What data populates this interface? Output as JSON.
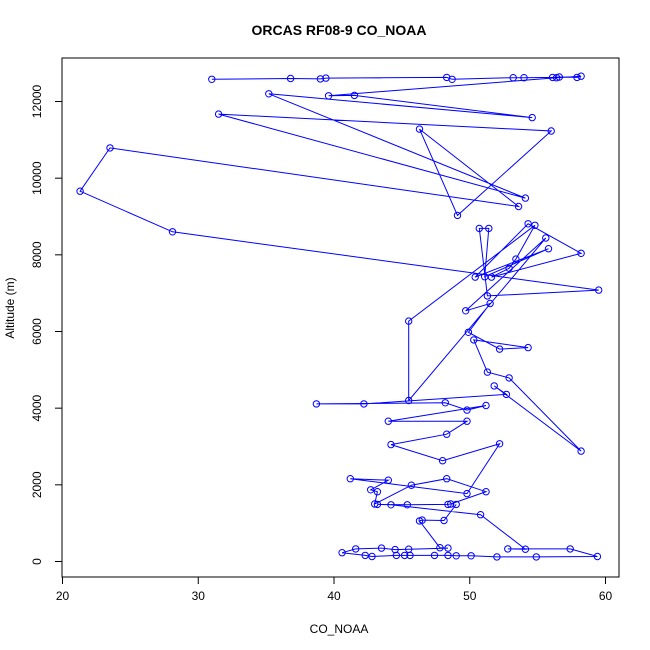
{
  "chart_data": {
    "type": "line",
    "title": "ORCAS RF08-9 CO_NOAA",
    "xlabel": "CO_NOAA",
    "ylabel": "Altitude (m)",
    "xlim": [
      20,
      60
    ],
    "ylim": [
      0,
      13000
    ],
    "x_ticks": [
      "20",
      "30",
      "40",
      "50",
      "60"
    ],
    "y_ticks": [
      "0",
      "2000",
      "4000",
      "6000",
      "8000",
      "10000",
      "12000"
    ],
    "series_color": "#0000ff",
    "marker": "open-circle",
    "grid": false,
    "series": [
      {
        "points": [
          [
            31.0,
            12580
          ],
          [
            36.8,
            12600
          ],
          [
            39.0,
            12590
          ],
          [
            39.4,
            12610
          ],
          [
            48.3,
            12630
          ],
          [
            48.7,
            12580
          ],
          [
            53.2,
            12620
          ],
          [
            54.0,
            12620
          ],
          [
            56.1,
            12630
          ],
          [
            56.6,
            12640
          ],
          [
            57.9,
            12630
          ],
          [
            58.2,
            12660
          ],
          [
            56.4,
            12620
          ],
          [
            39.6,
            12150
          ],
          [
            41.5,
            12160
          ],
          [
            54.6,
            11580
          ],
          [
            35.2,
            12200
          ],
          [
            54.1,
            9480
          ],
          [
            31.5,
            11670
          ],
          [
            56.0,
            11230
          ],
          [
            49.1,
            9030
          ],
          [
            46.3,
            11280
          ],
          [
            53.6,
            9260
          ],
          [
            23.5,
            10790
          ],
          [
            21.3,
            9660
          ],
          [
            28.1,
            8600
          ],
          [
            59.5,
            7080
          ],
          [
            51.3,
            6930
          ],
          [
            50.7,
            8690
          ],
          [
            51.4,
            8690
          ],
          [
            51.1,
            7430
          ],
          [
            55.8,
            8160
          ],
          [
            50.4,
            7420
          ],
          [
            54.3,
            8810
          ],
          [
            58.2,
            8040
          ],
          [
            51.6,
            7420
          ],
          [
            52.9,
            7650
          ],
          [
            53.4,
            7890
          ],
          [
            54.8,
            8770
          ],
          [
            45.5,
            6270
          ],
          [
            45.5,
            4200
          ],
          [
            55.6,
            8440
          ],
          [
            49.7,
            6540
          ],
          [
            51.5,
            6730
          ],
          [
            49.9,
            5980
          ],
          [
            52.2,
            5540
          ],
          [
            54.3,
            5580
          ],
          [
            50.3,
            5780
          ],
          [
            51.3,
            4940
          ],
          [
            52.9,
            4790
          ],
          [
            58.2,
            2880
          ],
          [
            51.8,
            4580
          ],
          [
            52.7,
            4360
          ],
          [
            42.2,
            4110
          ],
          [
            38.7,
            4110
          ],
          [
            48.2,
            4140
          ],
          [
            49.8,
            3950
          ],
          [
            51.2,
            4070
          ],
          [
            44.0,
            3660
          ],
          [
            49.8,
            3660
          ],
          [
            48.3,
            3320
          ],
          [
            44.2,
            3050
          ],
          [
            48.0,
            2630
          ],
          [
            52.2,
            3070
          ],
          [
            49.8,
            1770
          ],
          [
            41.2,
            2160
          ],
          [
            44.0,
            2120
          ],
          [
            42.7,
            1870
          ],
          [
            43.2,
            1820
          ],
          [
            43.0,
            1500
          ],
          [
            45.7,
            1990
          ],
          [
            48.3,
            2160
          ],
          [
            51.2,
            1820
          ],
          [
            48.6,
            1500
          ],
          [
            48.4,
            1490
          ],
          [
            45.4,
            1480
          ],
          [
            43.2,
            1490
          ],
          [
            44.2,
            1480
          ],
          [
            50.8,
            1220
          ],
          [
            54.1,
            320
          ],
          [
            52.8,
            330
          ],
          [
            57.4,
            330
          ],
          [
            59.4,
            130
          ],
          [
            54.9,
            120
          ],
          [
            52.0,
            120
          ],
          [
            50.1,
            150
          ],
          [
            49.0,
            150
          ],
          [
            48.4,
            160
          ],
          [
            47.4,
            160
          ],
          [
            45.6,
            160
          ],
          [
            45.2,
            160
          ],
          [
            44.6,
            160
          ],
          [
            42.8,
            130
          ],
          [
            42.3,
            160
          ],
          [
            40.6,
            230
          ],
          [
            41.6,
            330
          ],
          [
            43.5,
            350
          ],
          [
            44.5,
            310
          ],
          [
            45.5,
            320
          ],
          [
            48.4,
            350
          ],
          [
            47.8,
            360
          ],
          [
            46.3,
            1060
          ],
          [
            46.5,
            1080
          ],
          [
            48.1,
            1070
          ],
          [
            49.0,
            1490
          ]
        ]
      }
    ]
  }
}
